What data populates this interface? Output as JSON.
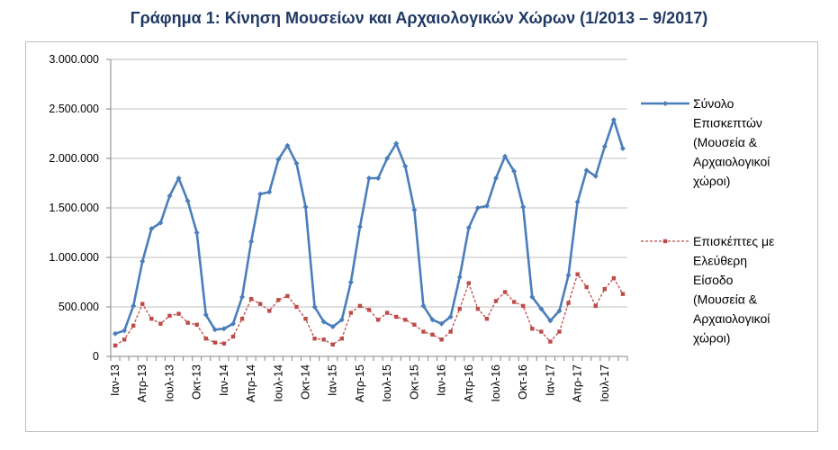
{
  "chart_data": {
    "type": "line",
    "title": "Γράφημα 1: Κίνηση Μουσείων και Αρχαιολογικών Χώρων (1/2013 – 9/2017)",
    "xlabel": "",
    "ylabel": "",
    "ylim": [
      0,
      3000000
    ],
    "yticks": [
      "0",
      "500.000",
      "1.000.000",
      "1.500.000",
      "2.000.000",
      "2.500.000",
      "3.000.000"
    ],
    "grid": true,
    "legend_position": "right",
    "categories": [
      "Ιαν-13",
      "Φεβ-13",
      "Μαρ-13",
      "Απρ-13",
      "Μαϊ-13",
      "Ιουν-13",
      "Ιουλ-13",
      "Αυγ-13",
      "Σεπ-13",
      "Οκτ-13",
      "Νοε-13",
      "Δεκ-13",
      "Ιαν-14",
      "Φεβ-14",
      "Μαρ-14",
      "Απρ-14",
      "Μαϊ-14",
      "Ιουν-14",
      "Ιουλ-14",
      "Αυγ-14",
      "Σεπ-14",
      "Οκτ-14",
      "Νοε-14",
      "Δεκ-14",
      "Ιαν-15",
      "Φεβ-15",
      "Μαρ-15",
      "Απρ-15",
      "Μαϊ-15",
      "Ιουν-15",
      "Ιουλ-15",
      "Αυγ-15",
      "Σεπ-15",
      "Οκτ-15",
      "Νοε-15",
      "Δεκ-15",
      "Ιαν-16",
      "Φεβ-16",
      "Μαρ-16",
      "Απρ-16",
      "Μαϊ-16",
      "Ιουν-16",
      "Ιουλ-16",
      "Αυγ-16",
      "Σεπ-16",
      "Οκτ-16",
      "Νοε-16",
      "Δεκ-16",
      "Ιαν-17",
      "Φεβ-17",
      "Μαρ-17",
      "Απρ-17",
      "Μαϊ-17",
      "Ιουν-17",
      "Ιουλ-17",
      "Αυγ-17",
      "Σεπ-17"
    ],
    "xtick_labels": [
      "Ιαν-13",
      "Απρ-13",
      "Ιουλ-13",
      "Οκτ-13",
      "Ιαν-14",
      "Απρ-14",
      "Ιουλ-14",
      "Οκτ-14",
      "Ιαν-15",
      "Απρ-15",
      "Ιουλ-15",
      "Οκτ-15",
      "Ιαν-16",
      "Απρ-16",
      "Ιουλ-16",
      "Οκτ-16",
      "Ιαν-17",
      "Απρ-17",
      "Ιουλ-17"
    ],
    "series": [
      {
        "name": "Σύνολο Επισκεπτών (Μουσεία & Αρχαιολογικοί χώροι)",
        "legend_lines": [
          "Σύνολο",
          "Επισκεπτών",
          "(Μουσεία &",
          "Αρχαιολογικοί",
          "χώροι)"
        ],
        "color": "#4a7ebb",
        "style": "solid-diamond",
        "values": [
          230000,
          260000,
          510000,
          960000,
          1290000,
          1350000,
          1620000,
          1800000,
          1570000,
          1250000,
          420000,
          270000,
          280000,
          330000,
          600000,
          1160000,
          1640000,
          1660000,
          1990000,
          2130000,
          1950000,
          1510000,
          500000,
          350000,
          300000,
          370000,
          750000,
          1310000,
          1800000,
          1800000,
          2000000,
          2150000,
          1920000,
          1480000,
          510000,
          370000,
          330000,
          400000,
          800000,
          1300000,
          1500000,
          1520000,
          1800000,
          2020000,
          1870000,
          1510000,
          600000,
          480000,
          360000,
          460000,
          820000,
          1560000,
          1880000,
          1820000,
          2120000,
          2390000,
          2100000
        ]
      },
      {
        "name": "Επισκέπτες με Ελεύθερη Είσοδο (Μουσεία & Αρχαιολογικοί χώροι)",
        "legend_lines": [
          "Επισκέπτες με",
          "Ελεύθερη",
          "Είσοδο",
          "(Μουσεία &",
          "Αρχαιολογικοί",
          "χώροι)"
        ],
        "color": "#be4b48",
        "style": "dashed-square",
        "values": [
          110000,
          170000,
          310000,
          530000,
          380000,
          330000,
          410000,
          430000,
          340000,
          320000,
          180000,
          140000,
          130000,
          200000,
          380000,
          580000,
          530000,
          460000,
          570000,
          610000,
          500000,
          380000,
          180000,
          170000,
          120000,
          180000,
          440000,
          510000,
          470000,
          370000,
          440000,
          400000,
          370000,
          320000,
          250000,
          220000,
          170000,
          250000,
          480000,
          740000,
          480000,
          380000,
          560000,
          650000,
          550000,
          510000,
          280000,
          250000,
          150000,
          250000,
          540000,
          830000,
          700000,
          510000,
          680000,
          790000,
          630000
        ]
      }
    ]
  }
}
